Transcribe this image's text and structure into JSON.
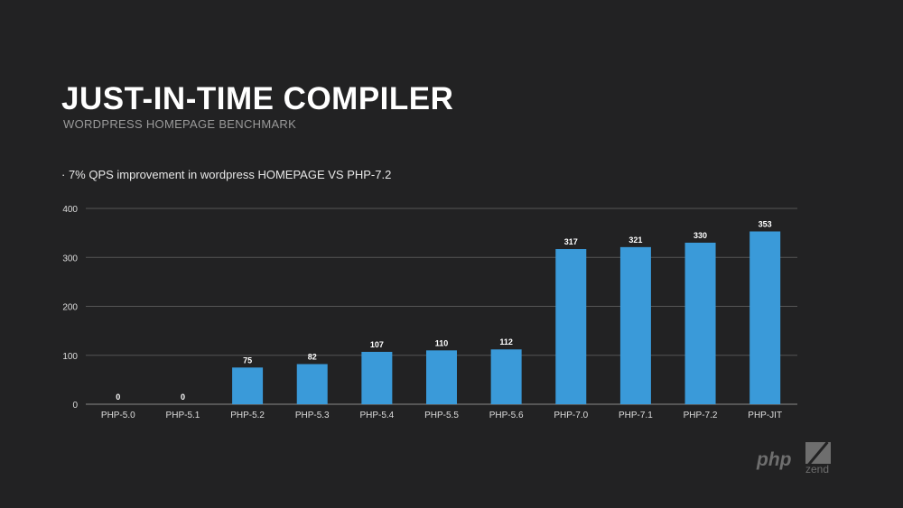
{
  "slide": {
    "title": "JUST-IN-TIME COMPILER",
    "subtitle": "WORDPRESS HOMEPAGE BENCHMARK",
    "bullet": "· 7% QPS improvement in wordpress HOMEPAGE VS PHP-7.2",
    "logos": {
      "php": "php",
      "zend": "zend"
    }
  },
  "chart_data": {
    "type": "bar",
    "title": "",
    "xlabel": "",
    "ylabel": "",
    "categories": [
      "PHP-5.0",
      "PHP-5.1",
      "PHP-5.2",
      "PHP-5.3",
      "PHP-5.4",
      "PHP-5.5",
      "PHP-5.6",
      "PHP-7.0",
      "PHP-7.1",
      "PHP-7.2",
      "PHP-JIT"
    ],
    "values": [
      0,
      0,
      75,
      82,
      107,
      110,
      112,
      317,
      321,
      330,
      353
    ],
    "ylim": [
      0,
      400
    ],
    "yticks": [
      0,
      100,
      200,
      300,
      400
    ],
    "grid": true,
    "bar_color": "#3a9ad9"
  }
}
